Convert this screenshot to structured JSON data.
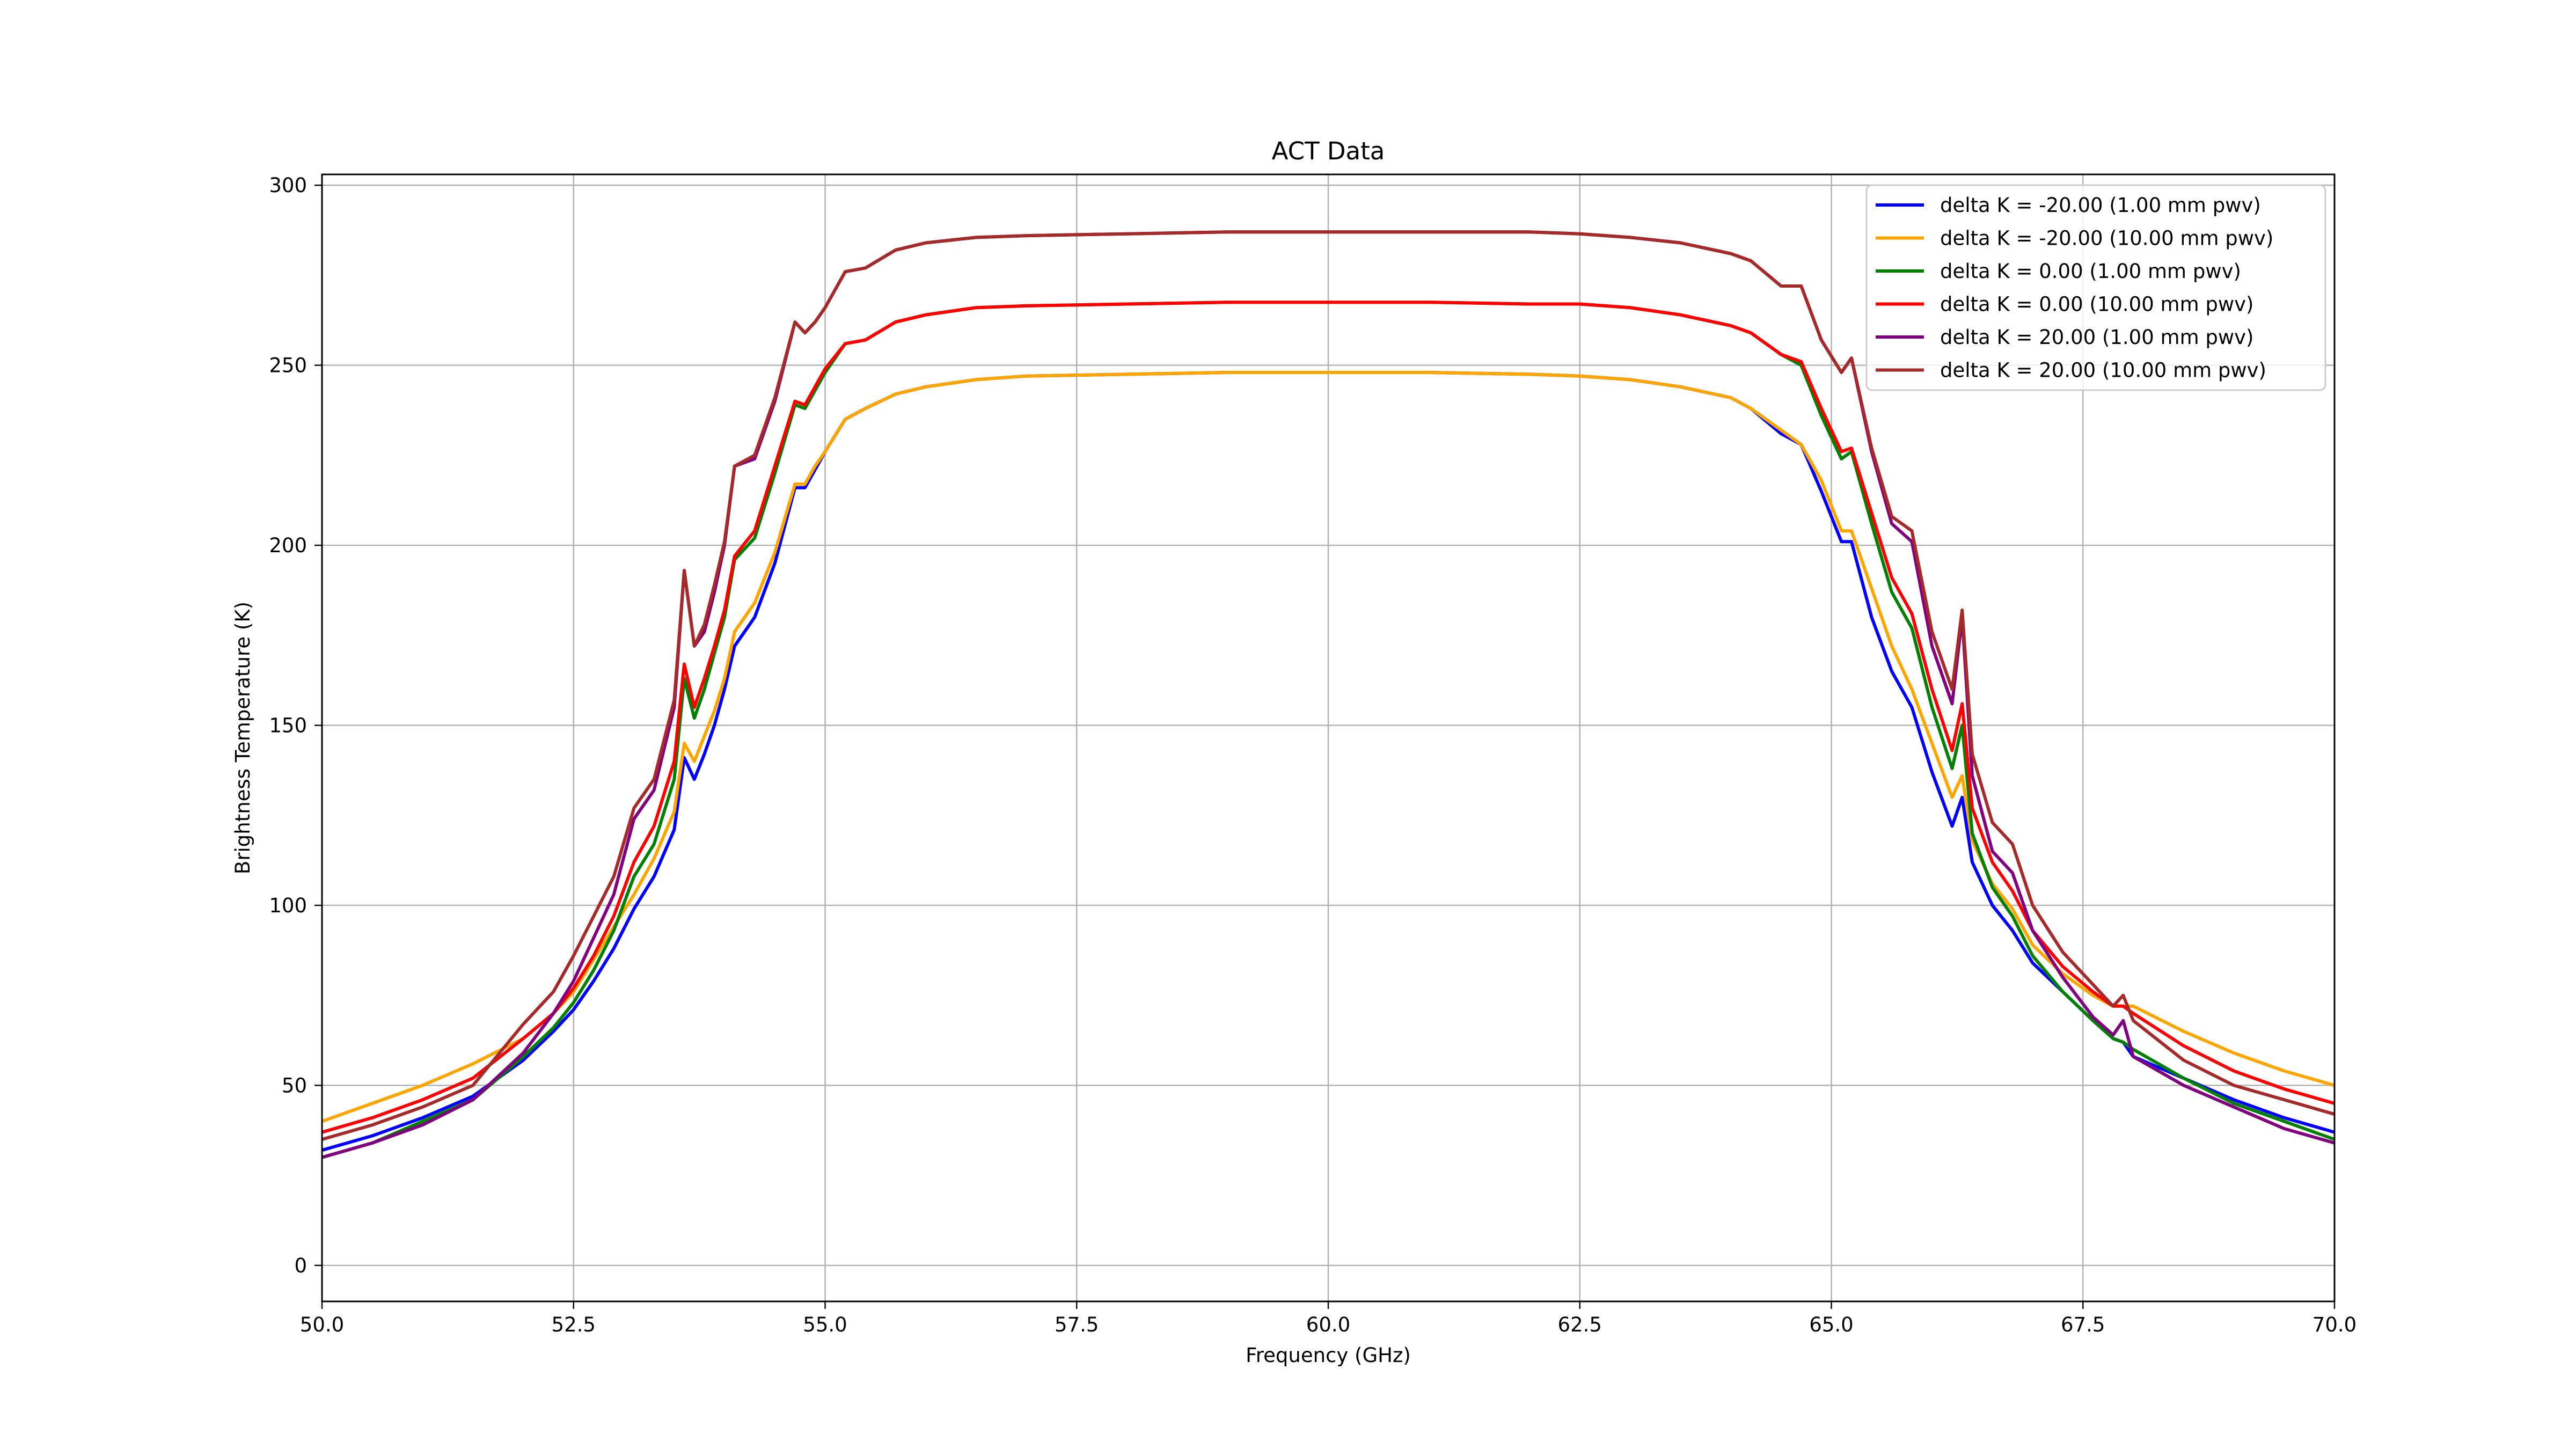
{
  "chart_data": {
    "type": "line",
    "title": "ACT Data",
    "xlabel": "Frequency (GHz)",
    "ylabel": "Brightness Temperature (K)",
    "xlim": [
      50.0,
      70.0
    ],
    "ylim": [
      -10,
      303
    ],
    "xticks": [
      50.0,
      52.5,
      55.0,
      57.5,
      60.0,
      62.5,
      65.0,
      67.5,
      70.0
    ],
    "xtick_labels": [
      "50.0",
      "52.5",
      "55.0",
      "57.5",
      "60.0",
      "62.5",
      "65.0",
      "67.5",
      "70.0"
    ],
    "yticks": [
      0,
      50,
      100,
      150,
      200,
      250,
      300
    ],
    "ytick_labels": [
      "0",
      "50",
      "100",
      "150",
      "200",
      "250",
      "300"
    ],
    "grid": true,
    "legend_position": "top-right",
    "x": [
      50.0,
      50.5,
      51.0,
      51.5,
      52.0,
      52.3,
      52.5,
      52.7,
      52.9,
      53.1,
      53.3,
      53.5,
      53.6,
      53.7,
      53.8,
      53.9,
      54.0,
      54.1,
      54.3,
      54.5,
      54.7,
      54.8,
      54.9,
      55.0,
      55.2,
      55.4,
      55.7,
      56.0,
      56.5,
      57.0,
      58.0,
      59.0,
      60.0,
      60.5,
      61.0,
      62.0,
      62.5,
      63.0,
      63.5,
      64.0,
      64.2,
      64.5,
      64.7,
      64.9,
      65.1,
      65.2,
      65.4,
      65.6,
      65.8,
      66.0,
      66.2,
      66.3,
      66.4,
      66.6,
      66.8,
      67.0,
      67.3,
      67.6,
      67.8,
      67.9,
      68.0,
      68.5,
      69.0,
      69.5,
      70.0
    ],
    "series": [
      {
        "name": "delta K = -20.00 (1.00 mm pwv)",
        "color": "#0000ff",
        "values": [
          32,
          36,
          41,
          47,
          57,
          65,
          71,
          79,
          88,
          99,
          108,
          121,
          141,
          135,
          142,
          150,
          160,
          172,
          180,
          195,
          216,
          216,
          221,
          226,
          235,
          238,
          242,
          244,
          246,
          247,
          247.5,
          248,
          248,
          248,
          248,
          247.5,
          247,
          246,
          244,
          241,
          238,
          231,
          228,
          215,
          201,
          201,
          180,
          165,
          155,
          137,
          122,
          130,
          112,
          100,
          93,
          84,
          76,
          68,
          63,
          62,
          58,
          52,
          46,
          41,
          37
        ]
      },
      {
        "name": "delta K = -20.00 (10.00 mm pwv)",
        "color": "#ffa500",
        "values": [
          40,
          45,
          50,
          56,
          63,
          70,
          76,
          85,
          94,
          103,
          113,
          126,
          145,
          140,
          147,
          154,
          163,
          176,
          184,
          198,
          217,
          217,
          222,
          226,
          235,
          238,
          242,
          244,
          246,
          247,
          247.5,
          248,
          248,
          248,
          248,
          247.5,
          247,
          246,
          244,
          241,
          238,
          232,
          228,
          218,
          204,
          204,
          188,
          172,
          160,
          145,
          130,
          136,
          118,
          106,
          99,
          89,
          81,
          75,
          72,
          72,
          72,
          65,
          59,
          54,
          50
        ]
      },
      {
        "name": "delta K = 0.00 (1.00 mm pwv)",
        "color": "#008000",
        "values": [
          30,
          34,
          40,
          46,
          58,
          66,
          73,
          82,
          93,
          108,
          117,
          135,
          163,
          152,
          160,
          170,
          180,
          196,
          202,
          220,
          239,
          238,
          243,
          248,
          256,
          257,
          262,
          264,
          266,
          266.5,
          267,
          267.5,
          267.5,
          267.5,
          267.5,
          267,
          267,
          266,
          264,
          261,
          259,
          253,
          250,
          236,
          224,
          226,
          206,
          187,
          177,
          155,
          138,
          150,
          120,
          105,
          97,
          86,
          76,
          68,
          63,
          62,
          60,
          52,
          45,
          40,
          35
        ]
      },
      {
        "name": "delta K = 0.00 (10.00 mm pwv)",
        "color": "#ff0000",
        "values": [
          37,
          41,
          46,
          52,
          63,
          70,
          77,
          86,
          97,
          112,
          122,
          140,
          167,
          155,
          163,
          172,
          182,
          197,
          204,
          222,
          240,
          239,
          244,
          249,
          256,
          257,
          262,
          264,
          266,
          266.5,
          267,
          267.5,
          267.5,
          267.5,
          267.5,
          267,
          267,
          266,
          264,
          261,
          259,
          253,
          251,
          238,
          226,
          227,
          209,
          191,
          181,
          160,
          143,
          156,
          127,
          112,
          104,
          93,
          83,
          76,
          72,
          72,
          70,
          61,
          54,
          49,
          45
        ]
      },
      {
        "name": "delta K = 20.00 (1.00 mm pwv)",
        "color": "#800080",
        "values": [
          30,
          34,
          39,
          46,
          59,
          70,
          79,
          91,
          103,
          124,
          132,
          155,
          193,
          172,
          176,
          187,
          200,
          222,
          224,
          240,
          262,
          259,
          262,
          266,
          276,
          277,
          282,
          284,
          285.5,
          286,
          286.5,
          287,
          287,
          287,
          287,
          287,
          286.5,
          285.5,
          284,
          281,
          279,
          272,
          272,
          257,
          248,
          252,
          226,
          206,
          201,
          172,
          156,
          180,
          136,
          115,
          109,
          93,
          80,
          69,
          64,
          68,
          58,
          50,
          44,
          38,
          34
        ]
      },
      {
        "name": "delta K = 20.00 (10.00 mm pwv)",
        "color": "#a52a2a",
        "values": [
          35,
          39,
          44,
          50,
          67,
          76,
          86,
          97,
          108,
          127,
          135,
          157,
          193,
          172,
          178,
          189,
          201,
          222,
          225,
          241,
          262,
          259,
          262,
          266,
          276,
          277,
          282,
          284,
          285.5,
          286,
          286.5,
          287,
          287,
          287,
          287,
          287,
          286.5,
          285.5,
          284,
          281,
          279,
          272,
          272,
          257,
          248,
          252,
          227,
          208,
          204,
          176,
          160,
          182,
          142,
          123,
          117,
          100,
          87,
          78,
          72,
          75,
          68,
          57,
          50,
          46,
          42
        ]
      }
    ]
  }
}
